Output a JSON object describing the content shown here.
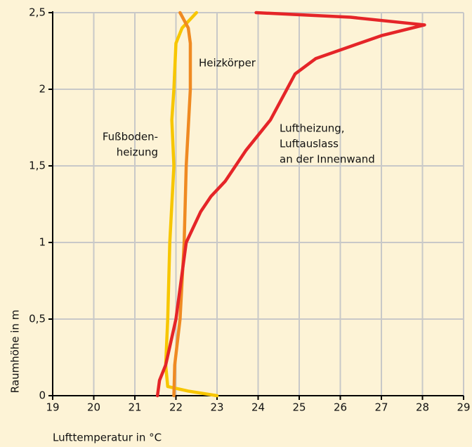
{
  "chart_data": {
    "type": "line",
    "xlabel": "Lufttemperatur in °C",
    "ylabel": "Raumhöhe in m",
    "xlim": [
      19,
      29
    ],
    "xticks": [
      19,
      20,
      21,
      22,
      23,
      24,
      25,
      26,
      27,
      28,
      29
    ],
    "ylim": [
      0,
      2.5
    ],
    "yticks": [
      {
        "value": 0,
        "label": "0"
      },
      {
        "value": 0.5,
        "label": "0,5"
      },
      {
        "value": 1,
        "label": "1"
      },
      {
        "value": 1.5,
        "label": "1,5"
      },
      {
        "value": 2,
        "label": "2"
      },
      {
        "value": 2.5,
        "label": "2,5"
      }
    ],
    "grid": true,
    "series": [
      {
        "name": "Fußboden-heizung",
        "label_lines": [
          "Fußboden-",
          "heizung"
        ],
        "color": "#f7c600",
        "x": [
          23.0,
          22.3,
          21.8,
          21.75,
          21.8,
          21.85,
          21.95,
          21.9,
          21.95,
          22.0,
          22.15,
          22.5
        ],
        "values": [
          0,
          0.03,
          0.06,
          0.2,
          0.5,
          1.0,
          1.5,
          1.8,
          2.0,
          2.3,
          2.4,
          2.5
        ]
      },
      {
        "name": "Heizkörper",
        "label_lines": [
          "Heizkörper"
        ],
        "color": "#ef8a22",
        "x": [
          21.95,
          21.97,
          22.1,
          22.2,
          22.25,
          22.35,
          22.35,
          22.3,
          22.1
        ],
        "values": [
          0,
          0.2,
          0.5,
          1.0,
          1.5,
          2.0,
          2.3,
          2.4,
          2.5
        ]
      },
      {
        "name": "Luftheizung, Luftauslass an der Innenwand",
        "label_lines": [
          "Luftheizung,",
          "Luftauslass",
          "an der Innenwand"
        ],
        "color": "#e52528",
        "x": [
          21.55,
          21.6,
          21.75,
          22.0,
          22.25,
          22.6,
          22.85,
          23.2,
          23.7,
          24.3,
          24.7,
          24.9,
          25.4,
          26.25,
          27.0,
          28.05,
          26.25,
          23.95
        ],
        "values": [
          0,
          0.1,
          0.2,
          0.5,
          1.0,
          1.2,
          1.3,
          1.4,
          1.6,
          1.8,
          2.0,
          2.1,
          2.2,
          2.28,
          2.35,
          2.42,
          2.47,
          2.5
        ]
      }
    ]
  }
}
